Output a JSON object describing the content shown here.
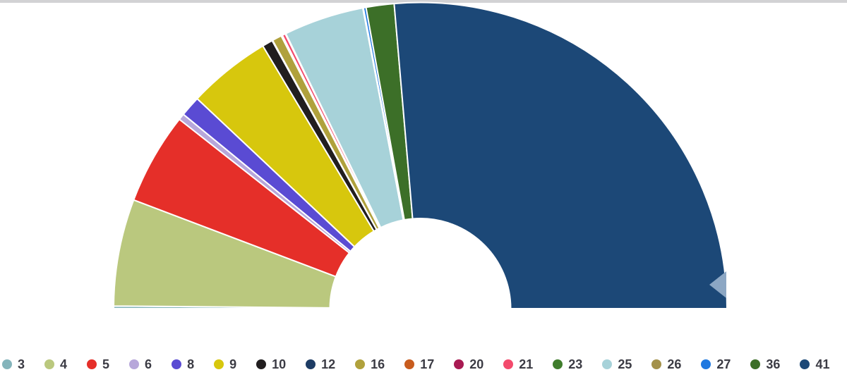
{
  "page": {
    "background": "#ffffff",
    "top_border_color": "#d2d2d4",
    "legend_text_color": "#3b3b44"
  },
  "chart_data": {
    "type": "pie",
    "variant": "half-donut",
    "title": "",
    "legend_position": "bottom",
    "total_degrees": 180,
    "grid": false,
    "segments": [
      {
        "label": "3",
        "color": "#84b4bb",
        "sweep_deg": 0.5
      },
      {
        "label": "4",
        "color": "#bac87e",
        "sweep_deg": 20.3
      },
      {
        "label": "5",
        "color": "#e52f29",
        "sweep_deg": 17.4
      },
      {
        "label": "6",
        "color": "#b7a7da",
        "sweep_deg": 1.2
      },
      {
        "label": "8",
        "color": "#5a4bd3",
        "sweep_deg": 3.9
      },
      {
        "label": "9",
        "color": "#d7c70d",
        "sweep_deg": 15.8
      },
      {
        "label": "10",
        "color": "#211e1f",
        "sweep_deg": 2.0
      },
      {
        "label": "12",
        "color": "#1d3c64",
        "sweep_deg": 0.12
      },
      {
        "label": "16",
        "color": "#b0a13c",
        "sweep_deg": 1.8
      },
      {
        "label": "17",
        "color": "#c85c1e",
        "sweep_deg": 0.12
      },
      {
        "label": "20",
        "color": "#a81a52",
        "sweep_deg": 0.12
      },
      {
        "label": "21",
        "color": "#f34a6c",
        "sweep_deg": 0.6
      },
      {
        "label": "23",
        "color": "#3f7d2c",
        "sweep_deg": 0.12
      },
      {
        "label": "25",
        "color": "#a7d2d9",
        "sweep_deg": 15.2
      },
      {
        "label": "26",
        "color": "#a3914a",
        "sweep_deg": 0.12
      },
      {
        "label": "27",
        "color": "#1e78e0",
        "sweep_deg": 0.5
      },
      {
        "label": "36",
        "color": "#3c6f28",
        "sweep_deg": 5.3
      },
      {
        "label": "41",
        "color": "#1c4877",
        "sweep_deg": 94.9
      }
    ]
  },
  "marker": {
    "color": "#8ca7c4"
  }
}
